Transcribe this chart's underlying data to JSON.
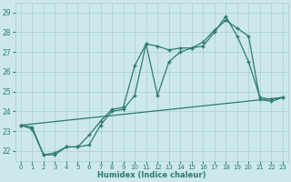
{
  "xlabel": "Humidex (Indice chaleur)",
  "background_color": "#cce8ec",
  "grid_color": "#aacdd4",
  "line_color": "#2d7a6e",
  "xlim": [
    -0.5,
    23.5
  ],
  "ylim": [
    21.5,
    29.5
  ],
  "xticks": [
    0,
    1,
    2,
    3,
    4,
    5,
    6,
    7,
    8,
    9,
    10,
    11,
    12,
    13,
    14,
    15,
    16,
    17,
    18,
    19,
    20,
    21,
    22,
    23
  ],
  "yticks": [
    22,
    23,
    24,
    25,
    26,
    27,
    28,
    29
  ],
  "line1": {
    "x": [
      0,
      1,
      2,
      3,
      4,
      5,
      6,
      7,
      8,
      9,
      10,
      11,
      12,
      13,
      14,
      15,
      16,
      17,
      18,
      19,
      20,
      21,
      22,
      23
    ],
    "y": [
      23.3,
      23.2,
      21.8,
      21.9,
      22.2,
      22.2,
      22.8,
      23.5,
      24.1,
      24.2,
      26.3,
      27.4,
      24.8,
      26.5,
      27.0,
      27.2,
      27.3,
      28.0,
      28.8,
      27.8,
      26.5,
      24.7,
      24.6,
      24.7
    ]
  },
  "line2": {
    "x": [
      0,
      1,
      2,
      3,
      4,
      5,
      6,
      7,
      8,
      9,
      10,
      11,
      12,
      13,
      14,
      15,
      16,
      17,
      18,
      19,
      20,
      21,
      22,
      23
    ],
    "y": [
      23.3,
      23.1,
      21.8,
      21.8,
      22.2,
      22.2,
      22.3,
      23.3,
      24.0,
      24.1,
      24.8,
      27.4,
      27.3,
      27.1,
      27.2,
      27.2,
      27.5,
      28.1,
      28.6,
      28.2,
      27.8,
      24.6,
      24.5,
      24.7
    ]
  },
  "line3": {
    "x": [
      0,
      23
    ],
    "y": [
      23.3,
      24.7
    ]
  }
}
